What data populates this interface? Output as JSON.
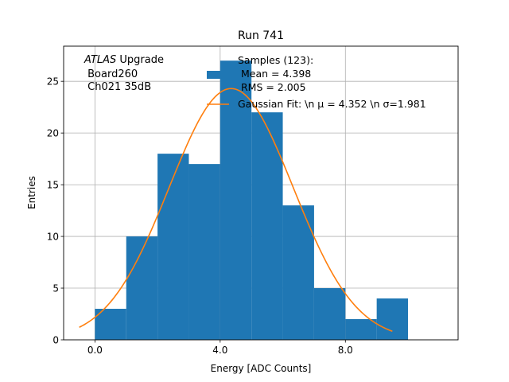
{
  "chart_data": {
    "type": "bar",
    "title": "Run 741",
    "xlabel": "Energy [ADC Counts]",
    "ylabel": "Entries",
    "xlim": [
      -1.0,
      11.6
    ],
    "ylim": [
      0,
      28.4
    ],
    "xticks": [
      0,
      4,
      8
    ],
    "xtick_labels": [
      "0.0",
      "4.0",
      "8.0"
    ],
    "yticks": [
      0,
      5,
      10,
      15,
      20,
      25
    ],
    "ytick_labels": [
      "0",
      "5",
      "10",
      "15",
      "20",
      "25"
    ],
    "grid": true,
    "bin_edges": [
      0,
      1,
      2,
      3,
      4,
      5,
      6,
      7,
      8,
      9,
      10
    ],
    "counts": [
      3,
      10,
      18,
      17,
      27,
      22,
      13,
      5,
      2,
      4
    ],
    "hist_color": "#1f77b4",
    "fit": {
      "name": "Gaussian Fit",
      "mu": 4.352,
      "sigma": 1.981,
      "amplitude": 24.3,
      "x_range": [
        -0.5,
        9.5
      ],
      "color": "#ff7f0e"
    },
    "annotation": {
      "italic": "ATLAS",
      "rest": " Upgrade",
      "line2": " Board260",
      "line3": " Ch021 35dB"
    },
    "legend": {
      "hist_lines": [
        "Samples (123):",
        " Mean = 4.398",
        " RMS = 2.005"
      ],
      "fit_label": "Gaussian Fit: \\n μ = 4.352 \\n σ=1.981"
    }
  }
}
